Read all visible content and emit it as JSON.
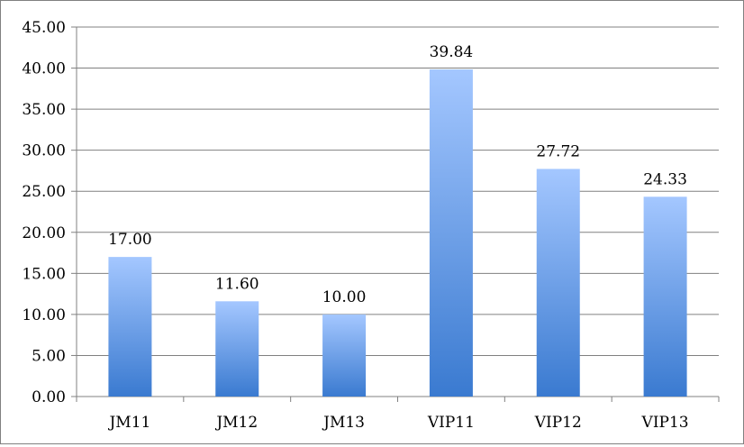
{
  "chart_data": {
    "type": "bar",
    "title": "",
    "xlabel": "",
    "ylabel": "",
    "categories": [
      "JM11",
      "JM12",
      "JM13",
      "VIP11",
      "VIP12",
      "VIP13"
    ],
    "values": [
      17.0,
      11.6,
      10.0,
      39.84,
      27.72,
      24.33
    ],
    "data_labels": [
      "17.00",
      "11.60",
      "10.00",
      "39.84",
      "27.72",
      "24.33"
    ],
    "ylim": [
      0,
      45
    ],
    "yticks": [
      0,
      5,
      10,
      15,
      20,
      25,
      30,
      35,
      40,
      45
    ],
    "ytick_labels": [
      "0.00",
      "5.00",
      "10.00",
      "15.00",
      "20.00",
      "25.00",
      "30.00",
      "35.00",
      "40.00",
      "45.00"
    ],
    "grid": true,
    "legend": "none",
    "colors": {
      "bar_top": "#a4c7ff",
      "bar_bottom": "#3a7ad0",
      "grid": "#808080",
      "axis": "#808080"
    }
  }
}
